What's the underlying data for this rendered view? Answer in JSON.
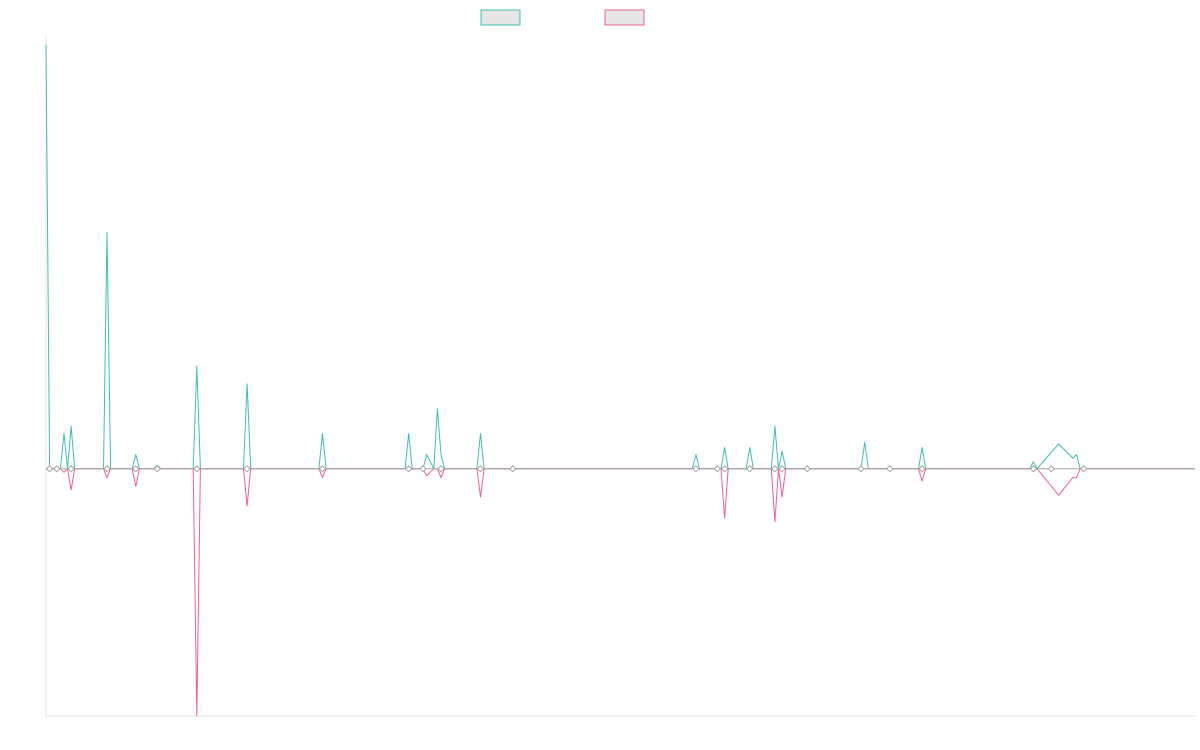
{
  "chart_data": {
    "type": "line",
    "title": "",
    "xlabel": "",
    "ylabel": "",
    "grid": false,
    "legend_position": "top-center",
    "xlim": [
      0,
      320
    ],
    "ylim": [
      -7,
      12.25
    ],
    "series": [
      {
        "color": "#3fbfb3",
        "fill": "#e6e6e6",
        "x": [
          0,
          1,
          2,
          4,
          5,
          6,
          7,
          8,
          16,
          17,
          18,
          24,
          25,
          26,
          30,
          31,
          32,
          41,
          42,
          43,
          55,
          56,
          57,
          76,
          77,
          78,
          100,
          101,
          102,
          104,
          105,
          106,
          108,
          109,
          110,
          111,
          120,
          121,
          122,
          129,
          130,
          136,
          180,
          181,
          182,
          186,
          188,
          189,
          190,
          195,
          196,
          197,
          202,
          203,
          204,
          205,
          206,
          212,
          217,
          227,
          228,
          229,
          235,
          243,
          244,
          245,
          273,
          274,
          275,
          276,
          282,
          286,
          287,
          288,
          289,
          290,
          320
        ],
        "y": [
          12.0,
          0.0,
          0.0,
          0.0,
          1.0,
          0.0,
          1.2,
          0.0,
          0.0,
          6.7,
          0.0,
          0.0,
          0.4,
          0.0,
          0.0,
          0.1,
          0.0,
          0.0,
          2.9,
          0.0,
          0.0,
          2.4,
          0.0,
          0.0,
          1.0,
          0.0,
          0.0,
          1.0,
          0.0,
          0.0,
          0.0,
          0.4,
          0.0,
          1.7,
          0.4,
          0.0,
          0.0,
          1.0,
          0.0,
          0.0,
          0.0,
          0.0,
          0.0,
          0.4,
          0.0,
          0.0,
          0.0,
          0.6,
          0.0,
          0.0,
          0.6,
          0.0,
          0.0,
          1.2,
          0.0,
          0.5,
          0.0,
          0.0,
          0.0,
          0.0,
          0.75,
          0.0,
          0.0,
          0.0,
          0.6,
          0.0,
          0.0,
          0.0,
          0.2,
          0.0,
          0.7,
          0.3,
          0.4,
          0.0,
          0.0,
          0.0,
          0.0
        ]
      },
      {
        "color": "#f0608a",
        "fill": "#e6e6e6",
        "x": [
          0,
          1,
          2,
          4,
          5,
          6,
          7,
          8,
          16,
          17,
          18,
          24,
          25,
          26,
          30,
          31,
          32,
          41,
          42,
          43,
          55,
          56,
          57,
          76,
          77,
          78,
          100,
          101,
          102,
          104,
          105,
          106,
          108,
          109,
          110,
          111,
          120,
          121,
          122,
          129,
          130,
          136,
          180,
          181,
          182,
          186,
          188,
          189,
          190,
          195,
          196,
          197,
          202,
          203,
          204,
          205,
          206,
          212,
          217,
          227,
          228,
          229,
          235,
          243,
          244,
          245,
          273,
          274,
          275,
          276,
          282,
          286,
          287,
          288,
          289,
          290,
          320
        ],
        "y": [
          0.0,
          0.0,
          0.0,
          0.0,
          -0.1,
          0.0,
          -0.6,
          0.0,
          0.0,
          -0.25,
          0.0,
          0.0,
          -0.5,
          0.0,
          0.0,
          0.0,
          0.0,
          0.0,
          -7.0,
          0.0,
          0.0,
          -1.05,
          0.0,
          0.0,
          -0.25,
          0.0,
          0.0,
          0.0,
          0.0,
          0.0,
          0.0,
          -0.2,
          0.0,
          0.0,
          -0.25,
          0.0,
          0.0,
          -0.8,
          0.0,
          0.0,
          0.0,
          0.0,
          0.0,
          0.0,
          0.0,
          0.0,
          0.0,
          -1.4,
          0.0,
          0.0,
          0.0,
          0.0,
          0.0,
          -1.5,
          0.0,
          -0.8,
          0.0,
          0.0,
          0.0,
          0.0,
          0.0,
          0.0,
          0.0,
          0.0,
          -0.35,
          0.0,
          0.0,
          0.0,
          0.0,
          0.0,
          -0.75,
          -0.25,
          -0.25,
          0.0,
          0.0,
          0.0,
          0.0
        ]
      }
    ],
    "markers_x": [
      1,
      3,
      7,
      17,
      25,
      31,
      42,
      56,
      77,
      101,
      105,
      110,
      121,
      130,
      181,
      187,
      189,
      196,
      203,
      205,
      212,
      227,
      235,
      244,
      275,
      280,
      289
    ]
  }
}
